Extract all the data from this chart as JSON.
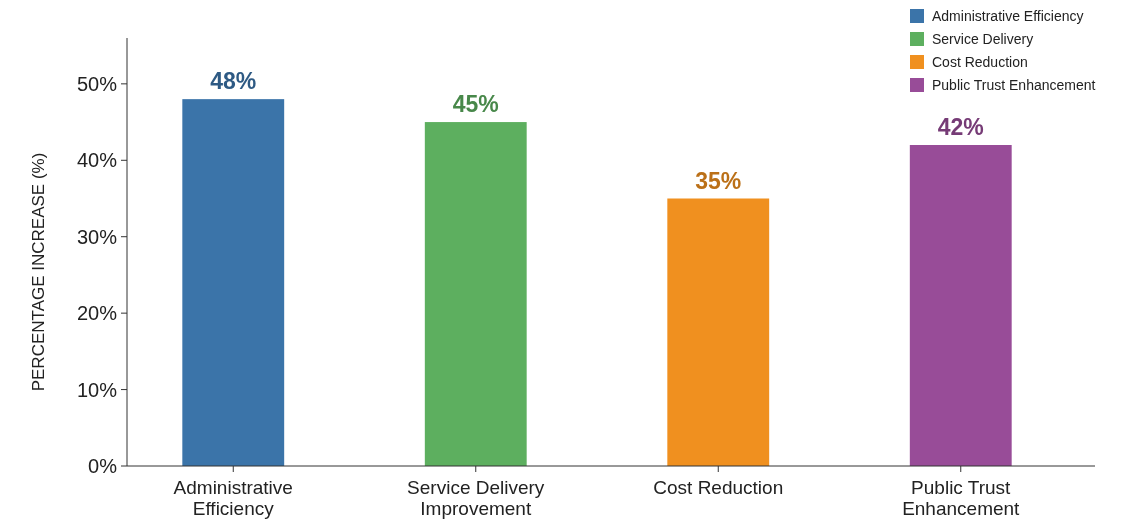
{
  "chart_data": {
    "type": "bar",
    "ylabel": "PERCENTAGE INCREASE (%)",
    "categories": [
      "Administrative Efficiency",
      "Service Delivery Improvement",
      "Cost Reduction",
      "Public Trust Enhancement"
    ],
    "series": [
      {
        "name": "Administrative Efficiency",
        "color": "#3b74a9",
        "values": [
          48,
          null,
          null,
          null
        ]
      },
      {
        "name": "Service Delivery",
        "color": "#5daf5f",
        "values": [
          null,
          45,
          null,
          null
        ]
      },
      {
        "name": "Cost Reduction",
        "color": "#f0901f",
        "values": [
          null,
          null,
          35,
          null
        ]
      },
      {
        "name": "Public Trust Enhancement",
        "color": "#984c98",
        "values": [
          null,
          null,
          null,
          42
        ]
      }
    ],
    "value_labels": [
      "48%",
      "45%",
      "35%",
      "42%"
    ],
    "ylim": [
      0,
      56
    ],
    "yticks": [
      {
        "value": 0,
        "label": "0%"
      },
      {
        "value": 10,
        "label": "10%"
      },
      {
        "value": 20,
        "label": "20%"
      },
      {
        "value": 30,
        "label": "30%"
      },
      {
        "value": 40,
        "label": "40%"
      },
      {
        "value": 50,
        "label": "50%"
      }
    ],
    "grid": false,
    "legend": "top right"
  }
}
